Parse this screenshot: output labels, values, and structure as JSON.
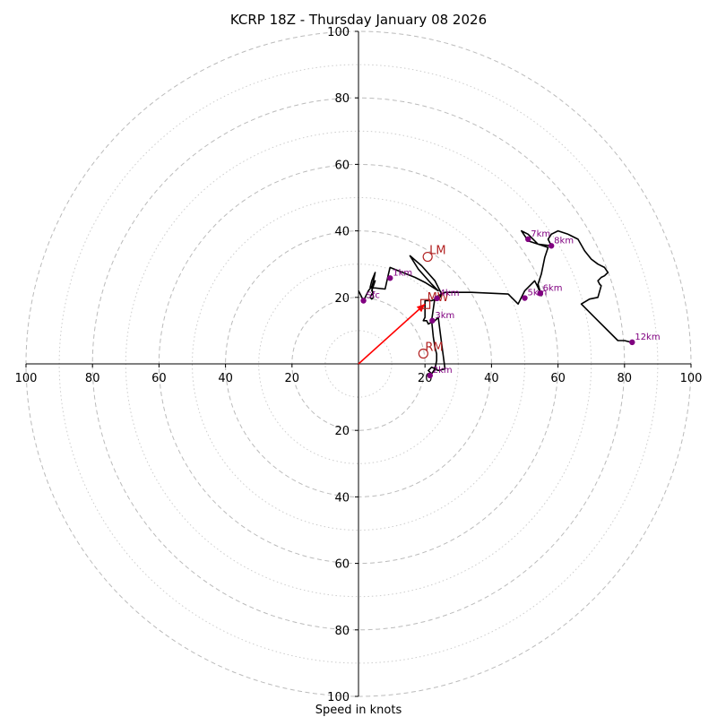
{
  "chart_data": {
    "type": "hodograph",
    "title": "KCRP 18Z - Thursday January 08 2026",
    "xlabel": "Speed in knots",
    "range_kt": [
      -100,
      100
    ],
    "ring_major_kt": [
      20,
      40,
      60,
      80,
      100
    ],
    "ring_minor_kt": [
      10,
      30,
      50,
      70,
      90
    ],
    "ticks": {
      "x": [
        -100,
        -80,
        -60,
        -40,
        -20,
        20,
        40,
        60,
        80,
        100
      ],
      "x_labels": [
        "100",
        "80",
        "60",
        "40",
        "20",
        "20",
        "40",
        "60",
        "80",
        "100"
      ],
      "y": [
        100,
        80,
        60,
        40,
        20,
        -20,
        -40,
        -60,
        -80,
        -100
      ],
      "y_labels": [
        "100",
        "80",
        "60",
        "40",
        "20",
        "20",
        "40",
        "60",
        "80",
        "100"
      ]
    },
    "colors": {
      "trace": "#000000",
      "height_marker": "#800080",
      "motion": "#b22222",
      "shear_vector": "#ff0000",
      "ring_major": "#bbbbbb",
      "ring_minor": "#cccccc"
    },
    "trace_uv": [
      [
        0.0,
        22.0
      ],
      [
        1.5,
        19.0
      ],
      [
        2.0,
        20.0
      ],
      [
        3.0,
        22.0
      ],
      [
        4.5,
        24.0
      ],
      [
        5.0,
        25.0
      ],
      [
        4.0,
        22.0
      ],
      [
        4.5,
        21.5
      ],
      [
        4.0,
        21.0
      ],
      [
        3.5,
        20.0
      ],
      [
        4.0,
        19.5
      ],
      [
        4.5,
        20.0
      ],
      [
        4.0,
        23.0
      ],
      [
        4.5,
        25.0
      ],
      [
        5.0,
        27.5
      ],
      [
        4.0,
        25.0
      ],
      [
        3.5,
        23.0
      ],
      [
        8.0,
        22.5
      ],
      [
        9.0,
        27.0
      ],
      [
        9.5,
        29.0
      ],
      [
        12.0,
        28.0
      ],
      [
        17.0,
        26.0
      ],
      [
        20.0,
        24.5
      ],
      [
        24.0,
        22.0
      ],
      [
        22.0,
        24.0
      ],
      [
        18.0,
        28.5
      ],
      [
        15.5,
        32.5
      ],
      [
        19.0,
        29.5
      ],
      [
        23.0,
        25.0
      ],
      [
        25.0,
        21.0
      ],
      [
        24.5,
        20.0
      ],
      [
        22.0,
        19.0
      ],
      [
        20.0,
        19.0
      ],
      [
        20.0,
        14.0
      ],
      [
        19.5,
        13.0
      ],
      [
        20.5,
        13.0
      ],
      [
        21.0,
        12.0
      ],
      [
        22.0,
        12.5
      ],
      [
        23.0,
        13.0
      ],
      [
        23.5,
        13.5
      ],
      [
        24.0,
        14.0
      ],
      [
        25.0,
        6.0
      ],
      [
        26.0,
        -1.5
      ],
      [
        24.0,
        -2.0
      ],
      [
        22.0,
        -1.0
      ],
      [
        21.0,
        -2.0
      ],
      [
        22.0,
        -3.0
      ],
      [
        23.0,
        -1.5
      ],
      [
        23.5,
        1.0
      ],
      [
        23.5,
        3.0
      ],
      [
        23.0,
        5.0
      ],
      [
        22.5,
        8.0
      ],
      [
        22.0,
        13.0
      ],
      [
        23.0,
        20.0
      ],
      [
        26.0,
        21.5
      ],
      [
        34.0,
        21.5
      ],
      [
        45.0,
        21.0
      ],
      [
        48.0,
        18.0
      ],
      [
        50.0,
        22.0
      ],
      [
        53.0,
        25.0
      ],
      [
        54.0,
        23.0
      ],
      [
        55.0,
        20.5
      ],
      [
        54.0,
        24.0
      ],
      [
        55.0,
        27.0
      ],
      [
        56.0,
        32.0
      ],
      [
        57.0,
        35.0
      ],
      [
        54.0,
        36.0
      ],
      [
        51.0,
        37.0
      ],
      [
        49.0,
        40.0
      ],
      [
        51.0,
        39.0
      ],
      [
        54.0,
        36.0
      ],
      [
        58.0,
        35.5
      ],
      [
        57.0,
        37.5
      ],
      [
        58.0,
        39.0
      ],
      [
        60.0,
        40.0
      ],
      [
        63.0,
        39.0
      ],
      [
        66.0,
        37.5
      ],
      [
        68.0,
        34.0
      ],
      [
        70.0,
        31.5
      ],
      [
        72.0,
        30.0
      ],
      [
        74.0,
        29.0
      ],
      [
        75.0,
        27.5
      ],
      [
        74.0,
        26.5
      ],
      [
        73.0,
        26.0
      ],
      [
        72.0,
        25.0
      ],
      [
        72.5,
        24.0
      ],
      [
        73.0,
        23.5
      ],
      [
        72.0,
        20.0
      ],
      [
        69.5,
        19.5
      ],
      [
        67.0,
        18.0
      ],
      [
        71.0,
        14.0
      ],
      [
        78.0,
        7.0
      ],
      [
        80.0,
        7.0
      ],
      [
        82.0,
        6.5
      ]
    ],
    "height_markers": [
      {
        "label": "Sfc",
        "u": 1.5,
        "v": 19.0
      },
      {
        "label": "1km",
        "u": 9.5,
        "v": 25.8
      },
      {
        "label": "2km",
        "u": 21.5,
        "v": -3.5
      },
      {
        "label": "3km",
        "u": 22.2,
        "v": 13.0
      },
      {
        "label": "4km",
        "u": 23.6,
        "v": 19.7
      },
      {
        "label": "5km",
        "u": 50.0,
        "v": 19.8
      },
      {
        "label": "6km",
        "u": 54.6,
        "v": 21.2
      },
      {
        "label": "7km",
        "u": 51.0,
        "v": 37.5
      },
      {
        "label": "8km",
        "u": 58.0,
        "v": 35.5
      },
      {
        "label": "12km",
        "u": 82.3,
        "v": 6.5
      }
    ],
    "storm_motion": [
      {
        "label": "LM",
        "u": 20.8,
        "v": 32.2
      },
      {
        "label": "RM",
        "u": 19.5,
        "v": 3.1
      },
      {
        "label": "MW",
        "u": 20.1,
        "v": 18.0
      }
    ],
    "shear_vector": {
      "u": 20.0,
      "v": 18.0
    }
  }
}
